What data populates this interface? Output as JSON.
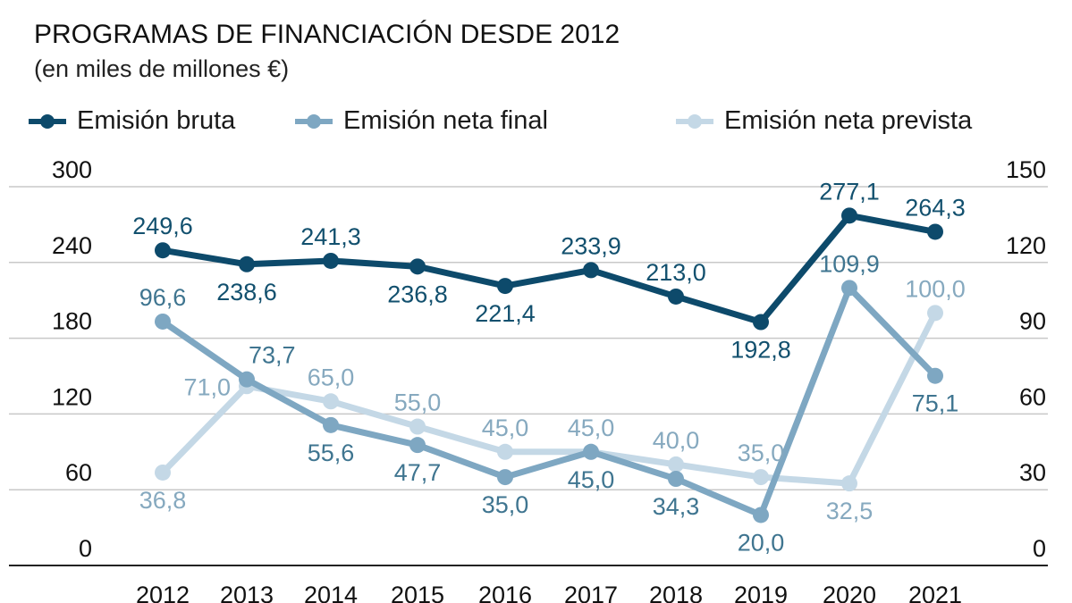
{
  "title": "PROGRAMAS DE FINANCIACIÓN DESDE 2012",
  "subtitle": "(en miles de millones €)",
  "legend": [
    {
      "label": "Emisión bruta",
      "color": "#0d4a6b"
    },
    {
      "label": "Emisión neta final",
      "color": "#7ea7c2"
    },
    {
      "label": "Emisión neta prevista",
      "color": "#c4d8e6"
    }
  ],
  "chart_data": {
    "type": "line",
    "title": "PROGRAMAS DE FINANCIACIÓN DESDE 2012",
    "subtitle": "(en miles de millones €)",
    "xlabel": "",
    "ylabel": "",
    "x": [
      "2012",
      "2013",
      "2014",
      "2015",
      "2016",
      "2017",
      "2018",
      "2019",
      "2020",
      "2021"
    ],
    "left_axis": {
      "ylim": [
        0,
        300
      ],
      "ticks": [
        "0",
        "60",
        "120",
        "180",
        "240",
        "300"
      ]
    },
    "right_axis": {
      "ylim": [
        0,
        150
      ],
      "ticks": [
        "0",
        "30",
        "60",
        "90",
        "120",
        "150"
      ]
    },
    "grid": true,
    "legend_position": "top",
    "series": [
      {
        "name": "Emisión bruta",
        "axis": "left",
        "color": "#0d4a6b",
        "label_color": "#12506e",
        "values": [
          249.6,
          238.6,
          241.3,
          236.8,
          221.4,
          233.9,
          213.0,
          192.8,
          277.1,
          264.3
        ],
        "labels": [
          "249,6",
          "238,6",
          "241,3",
          "236,8",
          "221,4",
          "233,9",
          "213,0",
          "192,8",
          "277,1",
          "264,3"
        ],
        "label_pos": [
          "above",
          "below",
          "above",
          "below",
          "below",
          "above",
          "above",
          "below",
          "above",
          "above"
        ]
      },
      {
        "name": "Emisión neta final",
        "axis": "right",
        "color": "#7ea7c2",
        "label_color": "#3f7590",
        "values": [
          96.6,
          73.7,
          55.6,
          47.7,
          35.0,
          45.0,
          34.3,
          20.0,
          109.9,
          75.1
        ],
        "labels": [
          "96,6",
          "73,7",
          "55,6",
          "47,7",
          "35,0",
          "45,0",
          "34,3",
          "20,0",
          "109,9",
          "75,1"
        ],
        "label_pos": [
          "above",
          "above-right",
          "below",
          "below",
          "below",
          "below",
          "below",
          "below",
          "above",
          "below"
        ]
      },
      {
        "name": "Emisión neta prevista",
        "axis": "right",
        "color": "#c4d8e6",
        "label_color": "#86a9bf",
        "values": [
          36.8,
          71.0,
          65.0,
          55.0,
          45.0,
          45.0,
          40.0,
          35.0,
          32.5,
          100.0
        ],
        "labels": [
          "36,8",
          "71,0",
          "65,0",
          "55,0",
          "45,0",
          "45,0",
          "40,0",
          "35,0",
          "32,5",
          "100,0"
        ],
        "label_pos": [
          "below",
          "left",
          "above",
          "above",
          "above",
          "above",
          "above",
          "above",
          "below",
          "above"
        ]
      }
    ]
  }
}
